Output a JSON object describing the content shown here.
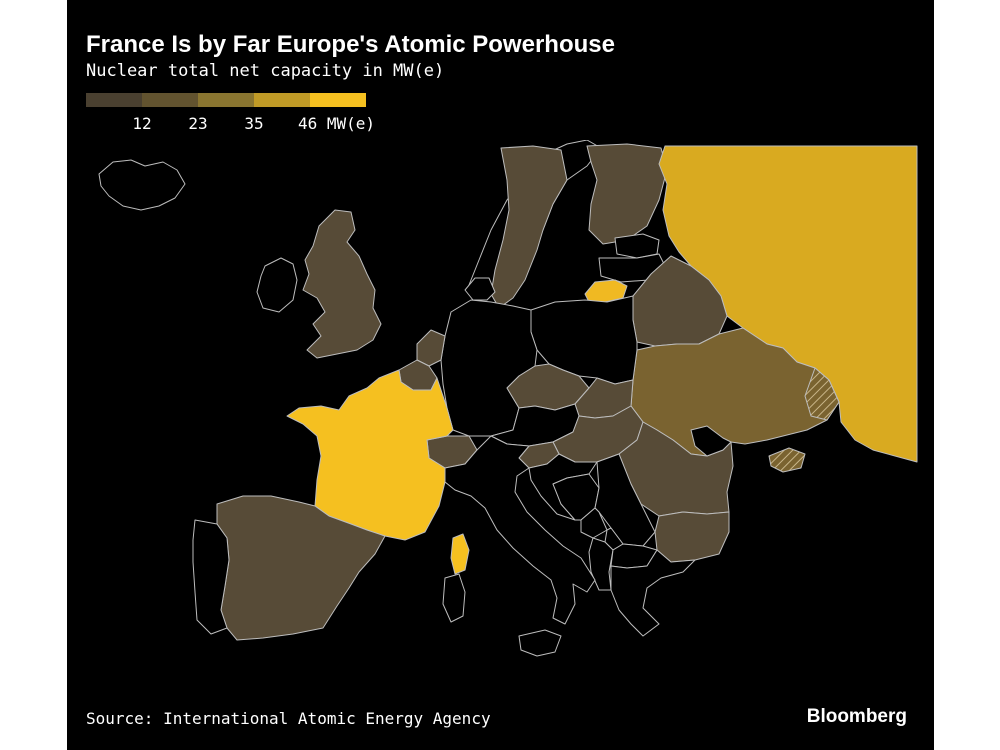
{
  "title": "France Is by Far Europe's Atomic Powerhouse",
  "subtitle": "Nuclear total net capacity in MW(e)",
  "legend": {
    "colors": [
      "#4a4030",
      "#62532f",
      "#8a7530",
      "#c09a26",
      "#f5c020"
    ],
    "ticks": [
      {
        "value": 12,
        "label": "12"
      },
      {
        "value": 23,
        "label": "23"
      },
      {
        "value": 35,
        "label": "35"
      },
      {
        "value": 46,
        "label": "46 MW(e)"
      }
    ],
    "max": 58
  },
  "colors": {
    "background": "#000000",
    "no_data": "#000000",
    "border": "#bdbdbd",
    "level_1": "#574b37",
    "level_france": "#f5c020",
    "level_russia": "#d9aa20",
    "level_ukraine": "#7a6330",
    "level_lithuania": "#f0b922"
  },
  "source": "Source: International Atomic Energy Agency",
  "brand": "Bloomberg"
}
